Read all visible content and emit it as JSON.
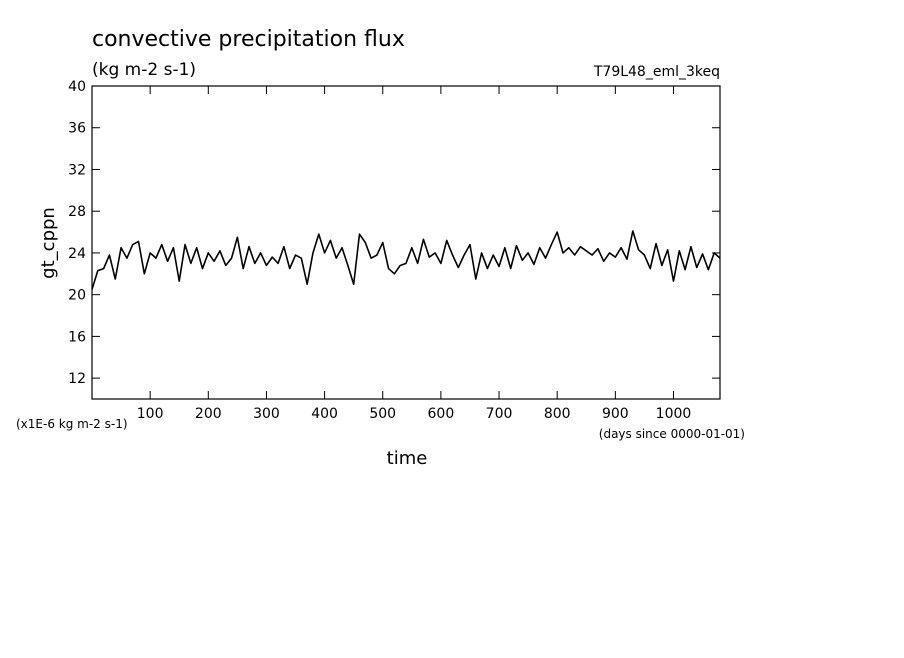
{
  "chart_data": {
    "type": "line",
    "title": "convective precipitation flux",
    "subtitle": "(kg m-2 s-1)",
    "annotation": "T79L48_eml_3keq",
    "ylabel": "gt_cppn",
    "yunit": "(x1E-6 kg m-2 s-1)",
    "xunit": "(days since 0000-01-01)",
    "xlabel": "time",
    "xlim": [
      0,
      1080
    ],
    "ylim": [
      10,
      40
    ],
    "xticks": [
      100,
      200,
      300,
      400,
      500,
      600,
      700,
      800,
      900,
      1000
    ],
    "yticks": [
      12,
      16,
      20,
      24,
      28,
      32,
      36,
      40
    ],
    "x": [
      0,
      10,
      20,
      30,
      40,
      50,
      60,
      70,
      80,
      90,
      100,
      110,
      120,
      130,
      140,
      150,
      160,
      170,
      180,
      190,
      200,
      210,
      220,
      230,
      240,
      250,
      260,
      270,
      280,
      290,
      300,
      310,
      320,
      330,
      340,
      350,
      360,
      370,
      380,
      390,
      400,
      410,
      420,
      430,
      440,
      450,
      460,
      470,
      480,
      490,
      500,
      510,
      520,
      530,
      540,
      550,
      560,
      570,
      580,
      590,
      600,
      610,
      620,
      630,
      640,
      650,
      660,
      670,
      680,
      690,
      700,
      710,
      720,
      730,
      740,
      750,
      760,
      770,
      780,
      790,
      800,
      810,
      820,
      830,
      840,
      850,
      860,
      870,
      880,
      890,
      900,
      910,
      920,
      930,
      940,
      950,
      960,
      970,
      980,
      990,
      1000,
      1010,
      1020,
      1030,
      1040,
      1050,
      1060,
      1070,
      1080
    ],
    "series": [
      {
        "color": "#000000",
        "values": [
          20.5,
          22.3,
          22.5,
          23.8,
          21.5,
          24.5,
          23.5,
          24.8,
          25.1,
          22,
          24,
          23.5,
          24.8,
          23.2,
          24.5,
          21.3,
          24.8,
          23,
          24.5,
          22.5,
          24,
          23.2,
          24.2,
          22.8,
          23.5,
          25.5,
          22.5,
          24.6,
          23,
          24,
          22.8,
          23.6,
          23,
          24.6,
          22.5,
          23.8,
          23.5,
          21,
          24,
          25.8,
          24,
          25.2,
          23.5,
          24.5,
          22.8,
          21,
          25.8,
          25,
          23.5,
          23.8,
          25,
          22.5,
          22,
          22.8,
          23,
          24.5,
          23,
          25.3,
          23.6,
          24,
          23,
          25.2,
          23.8,
          22.6,
          23.8,
          24.8,
          21.5,
          24,
          22.5,
          23.8,
          22.7,
          24.5,
          22.5,
          24.7,
          23.3,
          24,
          22.9,
          24.5,
          23.5,
          24.8,
          26,
          24,
          24.5,
          23.8,
          24.6,
          24.2,
          23.8,
          24.4,
          23.2,
          24,
          23.6,
          24.5,
          23.4,
          26.1,
          24.3,
          23.8,
          22.5,
          24.9,
          22.8,
          24.3,
          21.3,
          24.2,
          22.4,
          24.6,
          22.6,
          23.9,
          22.4,
          24,
          23.5
        ]
      }
    ]
  }
}
